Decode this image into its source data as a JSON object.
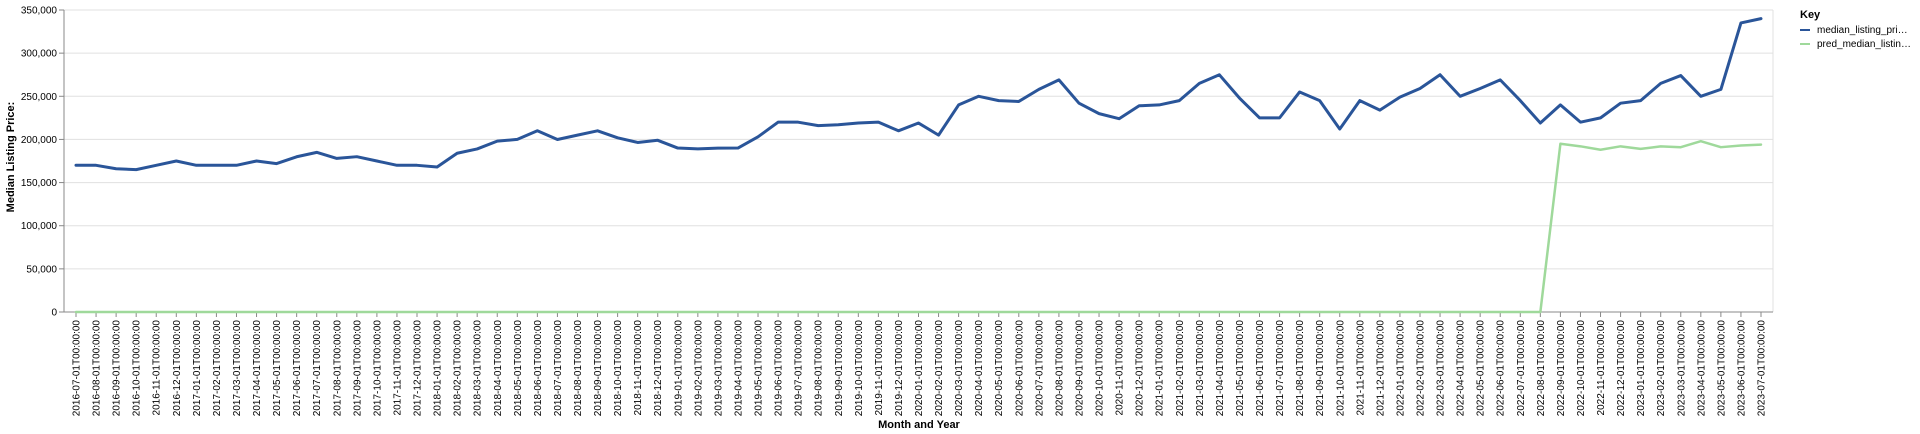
{
  "chart_data": {
    "type": "line",
    "title": "",
    "xlabel": "Month and Year",
    "ylabel": "Median Listing Price:",
    "ylim": [
      0,
      350000
    ],
    "yticks": [
      0,
      50000,
      100000,
      150000,
      200000,
      250000,
      300000,
      350000
    ],
    "ytick_labels": [
      "0",
      "50,000",
      "100,000",
      "150,000",
      "200,000",
      "250,000",
      "300,000",
      "350,000"
    ],
    "grid": true,
    "legend": {
      "title": "Key",
      "position": "top-right"
    },
    "colors": {
      "median": "#2a5599",
      "pred": "#9fd99b",
      "grid": "#e0e0e0",
      "axis": "#888888"
    },
    "x": [
      "2016-07-01T00:00:00",
      "2016-08-01T00:00:00",
      "2016-09-01T00:00:00",
      "2016-10-01T00:00:00",
      "2016-11-01T00:00:00",
      "2016-12-01T00:00:00",
      "2017-01-01T00:00:00",
      "2017-02-01T00:00:00",
      "2017-03-01T00:00:00",
      "2017-04-01T00:00:00",
      "2017-05-01T00:00:00",
      "2017-06-01T00:00:00",
      "2017-07-01T00:00:00",
      "2017-08-01T00:00:00",
      "2017-09-01T00:00:00",
      "2017-10-01T00:00:00",
      "2017-11-01T00:00:00",
      "2017-12-01T00:00:00",
      "2018-01-01T00:00:00",
      "2018-02-01T00:00:00",
      "2018-03-01T00:00:00",
      "2018-04-01T00:00:00",
      "2018-05-01T00:00:00",
      "2018-06-01T00:00:00",
      "2018-07-01T00:00:00",
      "2018-08-01T00:00:00",
      "2018-09-01T00:00:00",
      "2018-10-01T00:00:00",
      "2018-11-01T00:00:00",
      "2018-12-01T00:00:00",
      "2019-01-01T00:00:00",
      "2019-02-01T00:00:00",
      "2019-03-01T00:00:00",
      "2019-04-01T00:00:00",
      "2019-05-01T00:00:00",
      "2019-06-01T00:00:00",
      "2019-07-01T00:00:00",
      "2019-08-01T00:00:00",
      "2019-09-01T00:00:00",
      "2019-10-01T00:00:00",
      "2019-11-01T00:00:00",
      "2019-12-01T00:00:00",
      "2020-01-01T00:00:00",
      "2020-02-01T00:00:00",
      "2020-03-01T00:00:00",
      "2020-04-01T00:00:00",
      "2020-05-01T00:00:00",
      "2020-06-01T00:00:00",
      "2020-07-01T00:00:00",
      "2020-08-01T00:00:00",
      "2020-09-01T00:00:00",
      "2020-10-01T00:00:00",
      "2020-11-01T00:00:00",
      "2020-12-01T00:00:00",
      "2021-01-01T00:00:00",
      "2021-02-01T00:00:00",
      "2021-03-01T00:00:00",
      "2021-04-01T00:00:00",
      "2021-05-01T00:00:00",
      "2021-06-01T00:00:00",
      "2021-07-01T00:00:00",
      "2021-08-01T00:00:00",
      "2021-09-01T00:00:00",
      "2021-10-01T00:00:00",
      "2021-11-01T00:00:00",
      "2021-12-01T00:00:00",
      "2022-01-01T00:00:00",
      "2022-02-01T00:00:00",
      "2022-03-01T00:00:00",
      "2022-04-01T00:00:00",
      "2022-05-01T00:00:00",
      "2022-06-01T00:00:00",
      "2022-07-01T00:00:00",
      "2022-08-01T00:00:00",
      "2022-09-01T00:00:00",
      "2022-10-01T00:00:00",
      "2022-11-01T00:00:00",
      "2022-12-01T00:00:00",
      "2023-01-01T00:00:00",
      "2023-02-01T00:00:00",
      "2023-03-01T00:00:00",
      "2023-04-01T00:00:00",
      "2023-05-01T00:00:00",
      "2023-06-01T00:00:00",
      "2023-07-01T00:00:00"
    ],
    "series": [
      {
        "name": "median_listing_pri…",
        "color": "#2a5599",
        "values": [
          170000,
          170000,
          166000,
          165000,
          170000,
          175000,
          170000,
          170000,
          170000,
          175000,
          172000,
          179900,
          185000,
          178000,
          180000,
          175000,
          170000,
          170000,
          168000,
          184000,
          189000,
          198000,
          200000,
          210000,
          199900,
          205000,
          210000,
          201900,
          196500,
          199000,
          190000,
          189000,
          189900,
          190000,
          203000,
          220000,
          220000,
          216000,
          217000,
          219000,
          220000,
          210000,
          219000,
          205000,
          240000,
          250000,
          245000,
          244000,
          258000,
          269000,
          242000,
          229900,
          224000,
          239000,
          240000,
          245000,
          265000,
          274900,
          248000,
          225000,
          225000,
          255000,
          245000,
          212000,
          245000,
          234000,
          249000,
          259000,
          275000,
          250000,
          259000,
          269000,
          245000,
          219000,
          240000,
          220000,
          225000,
          242000,
          245000,
          265000,
          274000,
          250000,
          258000,
          335000,
          340000
        ]
      },
      {
        "name": "pred_median_listin…",
        "color": "#9fd99b",
        "values": [
          0,
          0,
          0,
          0,
          0,
          0,
          0,
          0,
          0,
          0,
          0,
          0,
          0,
          0,
          0,
          0,
          0,
          0,
          0,
          0,
          0,
          0,
          0,
          0,
          0,
          0,
          0,
          0,
          0,
          0,
          0,
          0,
          0,
          0,
          0,
          0,
          0,
          0,
          0,
          0,
          0,
          0,
          0,
          0,
          0,
          0,
          0,
          0,
          0,
          0,
          0,
          0,
          0,
          0,
          0,
          0,
          0,
          0,
          0,
          0,
          0,
          0,
          0,
          0,
          0,
          0,
          0,
          0,
          0,
          0,
          0,
          0,
          0,
          0,
          195000,
          192000,
          188000,
          192000,
          189000,
          192000,
          191000,
          198000,
          191000,
          193000,
          194000
        ]
      }
    ]
  }
}
